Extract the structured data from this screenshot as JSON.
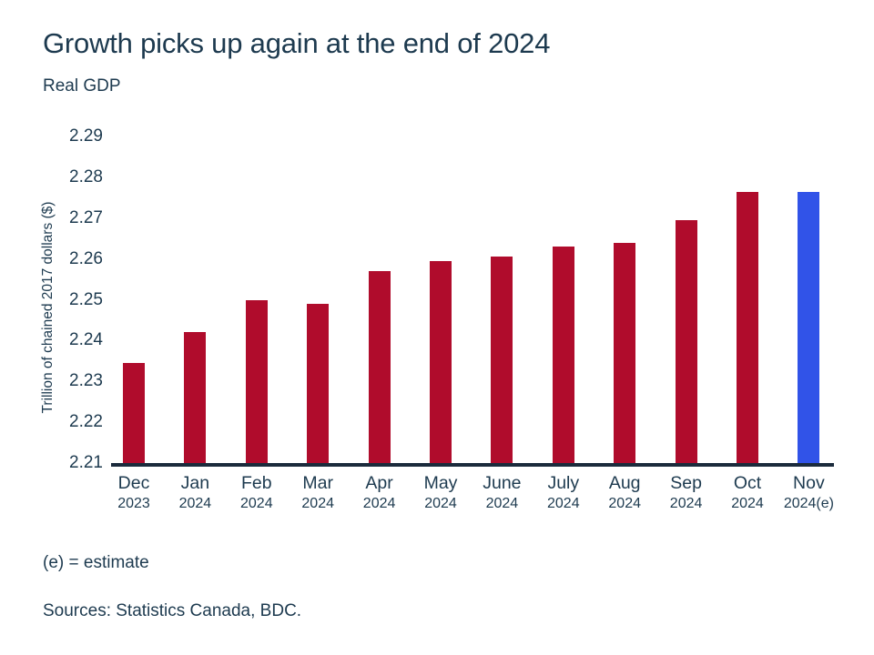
{
  "page": {
    "title": "Growth picks up again at the end of 2024",
    "subtitle": "Real GDP",
    "footnote": "(e) = estimate",
    "sources": "Sources: Statistics Canada, BDC."
  },
  "colors": {
    "text": "#1d3a4f",
    "axis": "#1b2b3c",
    "bar": "#b00c2c",
    "estimate_bar": "#3153e8"
  },
  "chart_data": {
    "type": "bar",
    "title": "Growth picks up again at the end of 2024",
    "subtitle": "Real GDP",
    "xlabel": "",
    "ylabel": "Trillion of chained 2017 dollars ($)",
    "ylim": [
      2.21,
      2.29
    ],
    "ytick_labels": [
      "2.21",
      "2.22",
      "2.23",
      "2.24",
      "2.25",
      "2.26",
      "2.27",
      "2.28",
      "2.29"
    ],
    "grid": false,
    "legend": "none",
    "categories": [
      "Dec 2023",
      "Jan 2024",
      "Feb 2024",
      "Mar 2024",
      "Apr 2024",
      "May 2024",
      "June 2024",
      "July 2024",
      "Aug 2024",
      "Sep 2024",
      "Oct 2024",
      "Nov 2024(e)"
    ],
    "category_lines": [
      [
        "Dec",
        "2023"
      ],
      [
        "Jan",
        "2024"
      ],
      [
        "Feb",
        "2024"
      ],
      [
        "Mar",
        "2024"
      ],
      [
        "Apr",
        "2024"
      ],
      [
        "May",
        "2024"
      ],
      [
        "June",
        "2024"
      ],
      [
        "July",
        "2024"
      ],
      [
        "Aug",
        "2024"
      ],
      [
        "Sep",
        "2024"
      ],
      [
        "Oct",
        "2024"
      ],
      [
        "Nov",
        "2024(e)"
      ]
    ],
    "values": [
      2.2345,
      2.242,
      2.25,
      2.249,
      2.257,
      2.2595,
      2.2605,
      2.263,
      2.264,
      2.2695,
      2.2765,
      2.2765
    ],
    "estimate_index": 11,
    "bar_color": "#b00c2c",
    "estimate_bar_color": "#3153e8"
  }
}
